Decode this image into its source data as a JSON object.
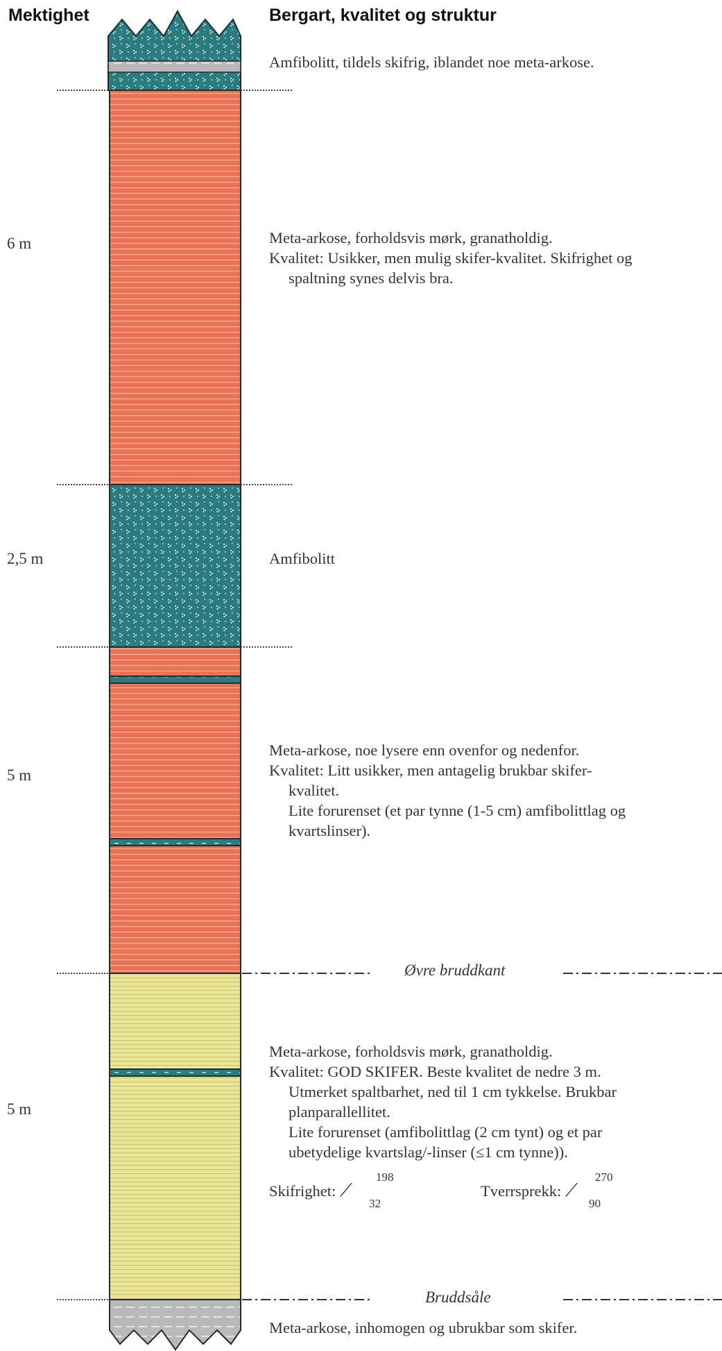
{
  "headers": {
    "thickness": "Mektighet",
    "description": "Bergart, kvalitet og struktur"
  },
  "colors": {
    "amphibolite": "#2b7c80",
    "meta_arkose_dark": "#ef7150",
    "meta_arkose_good": "#ebe59a",
    "meta_arkose_poor": "#b9b9ba",
    "outline": "#1e2e30"
  },
  "units": [
    {
      "thickness": "",
      "text": [
        "Amfibolitt, tildels skifrig, iblandet noe meta-arkose."
      ]
    },
    {
      "thickness": "6 m",
      "text": [
        "Meta-arkose, forholdsvis mørk, granatholdig.",
        "Kvalitet: Usikker, men mulig skifer-kvalitet. Skifrighet og",
        "spaltning synes delvis bra."
      ]
    },
    {
      "thickness": "2,5 m",
      "text": [
        "Amfibolitt"
      ]
    },
    {
      "thickness": "5 m",
      "text": [
        "Meta-arkose, noe lysere enn ovenfor og nedenfor.",
        "Kvalitet: Litt usikker, men antagelig brukbar skifer-",
        "kvalitet.",
        "Lite forurenset (et par tynne (1-5 cm) amfibolittlag og",
        "kvartslinser)."
      ]
    },
    {
      "thickness": "5 m",
      "text": [
        "Meta-arkose, forholdsvis mørk, granatholdig.",
        "Kvalitet: GOD SKIFER. Beste kvalitet de nedre 3 m.",
        "Utmerket spaltbarhet, ned til 1 cm tykkelse. Brukbar",
        "planparallellitet.",
        "Lite forurenset (amfibolittlag (2 cm tynt) og et par",
        "ubetydelige kvartslag/-linser (≤1 cm tynne))."
      ]
    },
    {
      "thickness": "",
      "text": [
        "Meta-arkose, inhomogen og ubrukbar som skifer."
      ]
    }
  ],
  "boundaries": {
    "upper": "Øvre bruddkant",
    "base": "Bruddsåle"
  },
  "measurements": {
    "foliation": {
      "label": "Skifrighet:",
      "symbol": "⟋",
      "strike": "198",
      "dip": "32"
    },
    "joint": {
      "label": "Tverrsprekk:",
      "symbol": "⟋",
      "strike": "270",
      "dip": "90"
    }
  }
}
